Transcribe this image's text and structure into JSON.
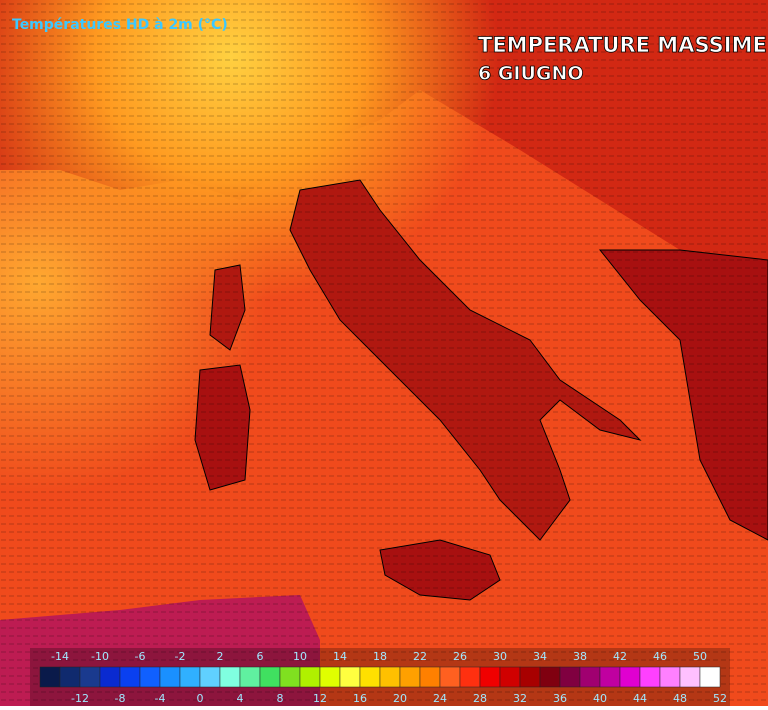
{
  "header": {
    "product": "Températures HD à 2m (°C)",
    "title": "TEMPERATURE MASSIME",
    "subtitle": "6 GIUGNO"
  },
  "legend": {
    "top_labels": [
      -14,
      -10,
      -6,
      -2,
      2,
      6,
      10,
      14,
      18,
      22,
      26,
      30,
      34,
      38,
      42,
      46,
      50
    ],
    "bottom_labels": [
      -12,
      -8,
      -4,
      0,
      4,
      8,
      12,
      16,
      20,
      24,
      28,
      32,
      36,
      40,
      44,
      48,
      52
    ],
    "colors": [
      "#0a1a4a",
      "#102a6e",
      "#1a3a8e",
      "#0a2ad0",
      "#0a40f0",
      "#1060ff",
      "#1a90ff",
      "#30b0ff",
      "#60d0ff",
      "#80ffe0",
      "#60f0a0",
      "#40e060",
      "#80e020",
      "#b0f000",
      "#e0ff00",
      "#ffff40",
      "#ffe000",
      "#ffc000",
      "#ffa000",
      "#ff8000",
      "#ff6020",
      "#ff3010",
      "#f00000",
      "#d00000",
      "#a80000",
      "#800010",
      "#800040",
      "#a00070",
      "#c000a0",
      "#e000d0",
      "#ff40ff",
      "#ff80ff",
      "#ffc0ff",
      "#ffffff"
    ]
  }
}
